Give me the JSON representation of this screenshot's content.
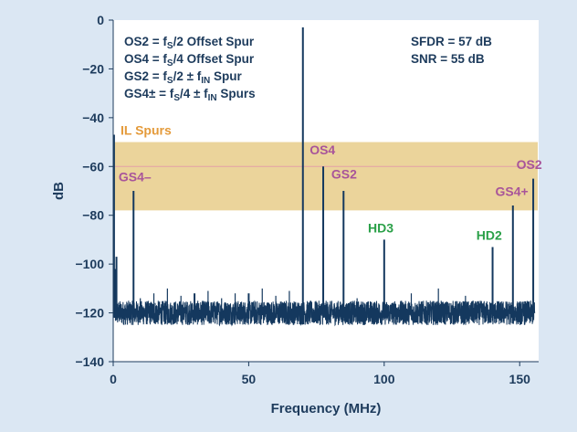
{
  "chart_data": {
    "type": "line",
    "xlabel": "Frequency (MHz)",
    "ylabel": "dB",
    "xlim": [
      0,
      157
    ],
    "ylim": [
      -140,
      0
    ],
    "x_ticks": [
      0,
      50,
      100,
      150
    ],
    "y_ticks": [
      0,
      -20,
      -40,
      -60,
      -80,
      -100,
      -120,
      -140
    ],
    "grid": false,
    "colors": {
      "background": "#dbe7f3",
      "plot_background": "#ffffff",
      "trace": "#14385e",
      "band_fill": "#e8cd8a",
      "band_line": "#e4a0a8",
      "il_label": "#e49a3a",
      "spur_label": "#a8549a",
      "harmonic_label": "#2aa048",
      "text": "#1d3b5c"
    },
    "legend": {
      "placement": "top-left",
      "lines": [
        {
          "lead": "OS2 = f",
          "sub1": "S",
          "mid": "/2 Offset Spur",
          "sub2": "",
          "tail": ""
        },
        {
          "lead": "OS4 = f",
          "sub1": "S",
          "mid": "/4 Offset Spur",
          "sub2": "",
          "tail": ""
        },
        {
          "lead": "GS2 = f",
          "sub1": "S",
          "mid": "/2 ± f",
          "sub2": "IN",
          "tail": " Spur"
        },
        {
          "lead": "GS4± = f",
          "sub1": "S",
          "mid": "/4 ± f",
          "sub2": "IN",
          "tail": " Spurs"
        }
      ]
    },
    "metrics": [
      "SFDR = 57 dB",
      "SNR = 55 dB"
    ],
    "band": {
      "label": "IL Spurs",
      "y_top": -50,
      "y_bottom": -78,
      "y_line": -60
    },
    "noise_floor": {
      "x_start": 0.5,
      "x_end": 155.5,
      "level_db": -120,
      "spread_db": 5
    },
    "series": [
      {
        "points": [
          {
            "x": 0.3,
            "y": -47
          },
          {
            "x": 0.8,
            "y": -102
          },
          {
            "x": 1.2,
            "y": -97
          },
          {
            "x": 7.5,
            "y": -70
          },
          {
            "x": 30,
            "y": -112
          },
          {
            "x": 50,
            "y": -112
          },
          {
            "x": 70,
            "y": -3
          },
          {
            "x": 77.5,
            "y": -60
          },
          {
            "x": 85,
            "y": -70
          },
          {
            "x": 100,
            "y": -90
          },
          {
            "x": 140,
            "y": -93
          },
          {
            "x": 147.5,
            "y": -76
          },
          {
            "x": 155,
            "y": -65
          }
        ]
      }
    ],
    "annotations": [
      {
        "text": "GS4–",
        "x": 2,
        "y": -66,
        "kind": "spur"
      },
      {
        "text": "OS4",
        "x": 72.5,
        "y": -55,
        "kind": "spur"
      },
      {
        "text": "GS2",
        "x": 80.5,
        "y": -65,
        "kind": "spur"
      },
      {
        "text": "HD3",
        "x": 94,
        "y": -87,
        "kind": "harmonic"
      },
      {
        "text": "HD2",
        "x": 134,
        "y": -90,
        "kind": "harmonic"
      },
      {
        "text": "GS4+",
        "x": 141,
        "y": -72,
        "kind": "spur"
      },
      {
        "text": "OS2",
        "x": 148.8,
        "y": -61,
        "kind": "spur"
      }
    ]
  }
}
